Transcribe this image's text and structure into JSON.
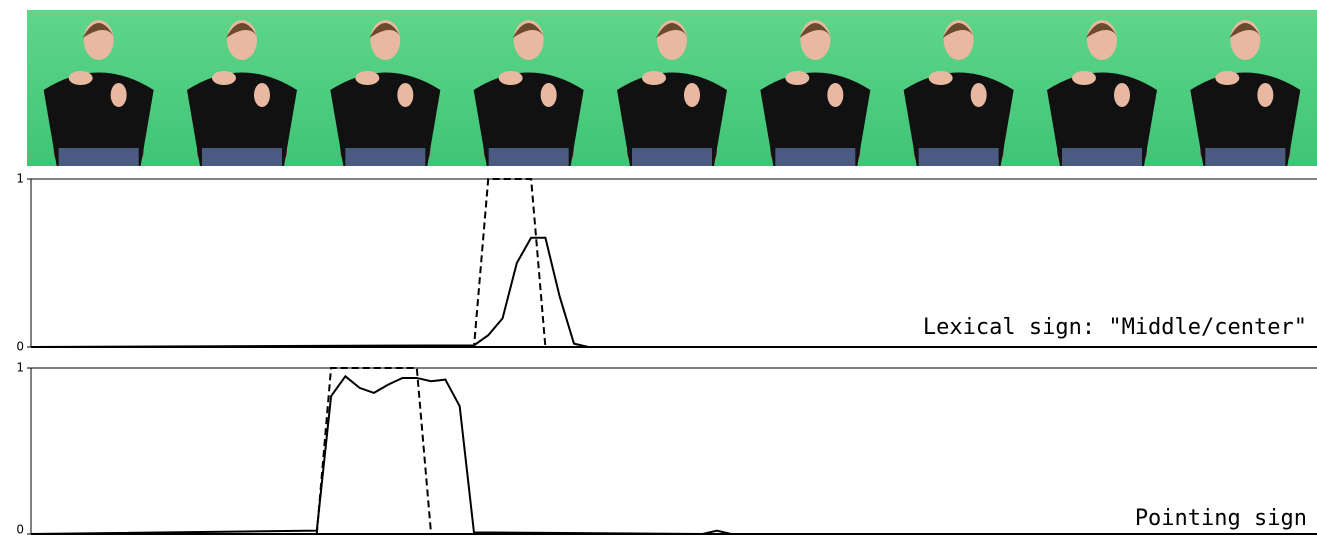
{
  "chart_data": [
    {
      "type": "line",
      "annotation": "Lexical sign: \"Middle/center\"",
      "x": [
        0,
        31,
        32,
        33,
        34,
        35,
        36,
        37,
        38,
        39,
        90
      ],
      "xlim": [
        0,
        90
      ],
      "ylim": [
        0,
        1
      ],
      "yticks": [
        0,
        1
      ],
      "series": [
        {
          "color": "#000000",
          "dash": false,
          "values": [
            0,
            0.01,
            0.07,
            0.17,
            0.5,
            0.65,
            0.65,
            0.3,
            0.02,
            0,
            0
          ]
        },
        {
          "color": "#000000",
          "dash": true,
          "values": [
            0,
            0,
            1,
            1,
            1,
            1,
            0,
            0,
            0,
            0,
            0
          ]
        }
      ]
    },
    {
      "type": "line",
      "annotation": "Pointing sign",
      "x": [
        0,
        20,
        21,
        22,
        23,
        24,
        25,
        26,
        27,
        28,
        29,
        30,
        31,
        47,
        48,
        49,
        90
      ],
      "xlim": [
        0,
        90
      ],
      "ylim": [
        0,
        1
      ],
      "yticks": [
        0,
        1
      ],
      "series": [
        {
          "color": "#000000",
          "dash": false,
          "values": [
            0,
            0.02,
            0.83,
            0.95,
            0.88,
            0.85,
            0.9,
            0.94,
            0.94,
            0.92,
            0.93,
            0.77,
            0.01,
            0,
            0.02,
            0,
            0
          ]
        },
        {
          "color": "#000000",
          "dash": true,
          "values": [
            0,
            0,
            1,
            1,
            1,
            1,
            1,
            1,
            1,
            0,
            0,
            0,
            0,
            0,
            0,
            0,
            0
          ]
        }
      ]
    }
  ]
}
